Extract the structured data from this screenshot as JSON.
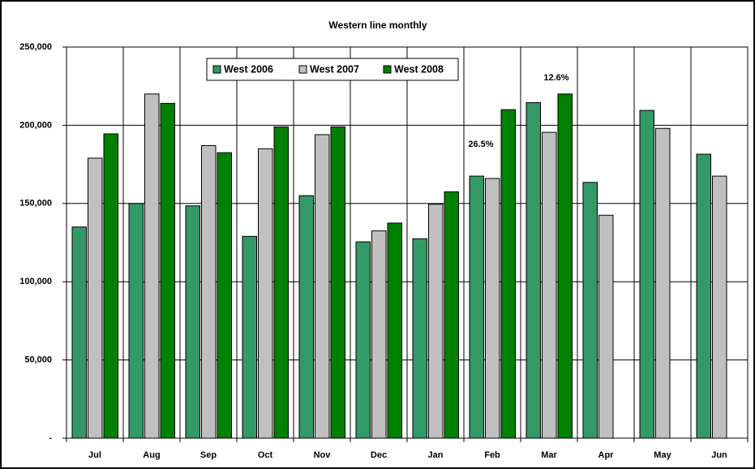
{
  "chart_data": {
    "type": "bar",
    "title": "Western line monthly",
    "categories": [
      "Jul",
      "Aug",
      "Sep",
      "Oct",
      "Nov",
      "Dec",
      "Jan",
      "Feb",
      "Mar",
      "Apr",
      "May",
      "Jun"
    ],
    "series": [
      {
        "name": "West 2006",
        "color": "#339966",
        "values": [
          135000,
          150000,
          148500,
          129000,
          155000,
          125500,
          127500,
          167500,
          214500,
          163500,
          209500,
          181500
        ]
      },
      {
        "name": "West 2007",
        "color": "#c0c0c0",
        "values": [
          179000,
          220000,
          187000,
          185000,
          194000,
          132500,
          149500,
          166000,
          195500,
          142500,
          198000,
          167500
        ]
      },
      {
        "name": "West 2008",
        "color": "#008000",
        "values": [
          194500,
          214000,
          182500,
          199000,
          199000,
          137500,
          157500,
          210000,
          220000,
          null,
          null,
          null
        ]
      }
    ],
    "ylim": [
      0,
      250000
    ],
    "yticks": [
      {
        "value": 0,
        "label": "-"
      },
      {
        "value": 50000,
        "label": "50,000"
      },
      {
        "value": 100000,
        "label": "100,000"
      },
      {
        "value": 150000,
        "label": "150,000"
      },
      {
        "value": 200000,
        "label": "200,000"
      },
      {
        "value": 250000,
        "label": "250,000"
      }
    ],
    "grid": true,
    "legend": "top",
    "annotations": [
      "26.5%",
      "12.6%"
    ]
  }
}
